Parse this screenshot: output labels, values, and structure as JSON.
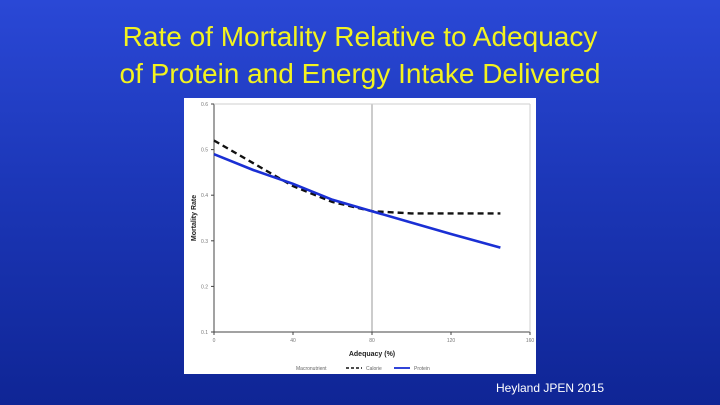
{
  "slide": {
    "title_line1": "Rate of Mortality Relative to Adequacy",
    "title_line2": "of Protein and Energy Intake Delivered",
    "citation": "Heyland JPEN 2015",
    "colors": {
      "title": "#f3f31f",
      "calorie": "#111111",
      "protein": "#1a2fd4",
      "reference_line": "#9a9a9a"
    }
  },
  "chart_data": {
    "type": "line",
    "title": "",
    "xlabel": "Adequacy (%)",
    "ylabel": "Mortality Rate",
    "xlim": [
      0,
      160
    ],
    "ylim": [
      0.1,
      0.6
    ],
    "x_ticks": [
      "0",
      "40",
      "80",
      "120",
      "160"
    ],
    "y_ticks": [
      "0.1",
      "0.2",
      "0.3",
      "0.4",
      "0.5",
      "0.6"
    ],
    "reference_x": 80,
    "grid": false,
    "legend": {
      "position": "bottom",
      "title": "Macronutrient",
      "entries": [
        "Calorie",
        "Protein"
      ]
    },
    "series": [
      {
        "name": "Calorie",
        "style": "dashed",
        "x": [
          0,
          20,
          40,
          60,
          80,
          100,
          120,
          145
        ],
        "y": [
          0.52,
          0.47,
          0.42,
          0.385,
          0.365,
          0.36,
          0.36,
          0.36
        ]
      },
      {
        "name": "Protein",
        "style": "solid",
        "x": [
          0,
          20,
          40,
          60,
          80,
          100,
          120,
          145
        ],
        "y": [
          0.49,
          0.455,
          0.425,
          0.39,
          0.365,
          0.34,
          0.315,
          0.285
        ]
      }
    ]
  }
}
